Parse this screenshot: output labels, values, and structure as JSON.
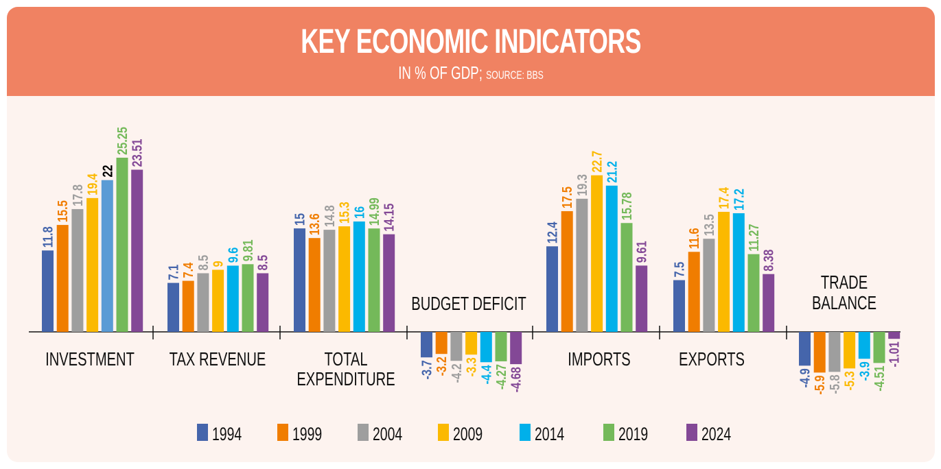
{
  "header": {
    "title": "KEY ECONOMIC INDICATORS",
    "subtitle_main": "IN % OF GDP;",
    "subtitle_source": "SOURCE: BBS"
  },
  "chart_data": {
    "type": "bar",
    "title": "KEY ECONOMIC INDICATORS",
    "subtitle": "IN % OF GDP; SOURCE: BBS",
    "xlabel": "",
    "ylabel": "% of GDP",
    "ylim": [
      -6,
      26
    ],
    "grid": false,
    "legend_position": "bottom",
    "categories": [
      "INVESTMENT",
      "TAX REVENUE",
      "TOTAL EXPENDITURE",
      "BUDGET DEFICIT",
      "IMPORTS",
      "EXPORTS",
      "TRADE BALANCE"
    ],
    "series": [
      {
        "name": "1994",
        "color": "#4565ab",
        "values": [
          11.8,
          7.1,
          15,
          -3.7,
          12.4,
          7.5,
          -4.9
        ],
        "labels": [
          "11.8",
          "7.1",
          "15",
          "-3.7",
          "12.4",
          "7.5",
          "-4.9"
        ]
      },
      {
        "name": "1999",
        "color": "#f07d00",
        "values": [
          15.5,
          7.4,
          13.6,
          -3.2,
          17.5,
          11.6,
          -5.9
        ],
        "labels": [
          "15.5",
          "7.4",
          "13.6",
          "-3.2",
          "17.5",
          "11.6",
          "-5.9"
        ]
      },
      {
        "name": "2004",
        "color": "#9e9e9e",
        "values": [
          17.8,
          8.5,
          14.8,
          -4.2,
          19.3,
          13.5,
          -5.8
        ],
        "labels": [
          "17.8",
          "8.5",
          "14.8",
          "-4.2",
          "19.3",
          "13.5",
          "-5.8"
        ]
      },
      {
        "name": "2009",
        "color": "#fbb900",
        "values": [
          19.4,
          9,
          15.3,
          -3.3,
          22.7,
          17.4,
          -5.3
        ],
        "labels": [
          "19.4",
          "9",
          "15.3",
          "-3.3",
          "22.7",
          "17.4",
          "-5.3"
        ]
      },
      {
        "name": "2014",
        "color": "#00b0ea",
        "values": [
          22,
          9.6,
          16,
          -4.4,
          21.2,
          17.2,
          -3.9
        ],
        "labels": [
          "22",
          "9.6",
          "16",
          "-4.4",
          "21.2",
          "17.2",
          "-3.9"
        ]
      },
      {
        "name": "2019",
        "color": "#74b95a",
        "values": [
          25.25,
          9.81,
          14.99,
          -4.27,
          15.78,
          11.27,
          -4.51
        ],
        "labels": [
          "25.25",
          "9.81",
          "14.99",
          "-4.27",
          "15.78",
          "11.27",
          "-4.51"
        ]
      },
      {
        "name": "2024",
        "color": "#834896",
        "values": [
          23.51,
          8.5,
          14.15,
          -4.68,
          9.61,
          8.38,
          -1.01
        ],
        "labels": [
          "23.51",
          "8.5",
          "14.15",
          "-4.68",
          "9.61",
          "8.38",
          "-1.01"
        ]
      }
    ],
    "overrides": {
      "investment_2014_bar_color": "#5b9bd5",
      "investment_2014_label_color": "#000000"
    }
  }
}
